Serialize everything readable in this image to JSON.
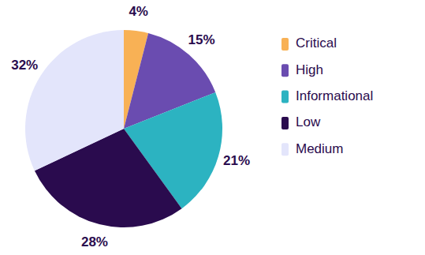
{
  "chart_data": {
    "type": "pie",
    "categories": [
      "Critical",
      "High",
      "Informational",
      "Low",
      "Medium"
    ],
    "values": [
      4,
      15,
      21,
      28,
      32
    ],
    "value_labels": [
      "4%",
      "15%",
      "21%",
      "28%",
      "32%"
    ],
    "colors": [
      "#f8b155",
      "#6a4cb0",
      "#2cb3c1",
      "#2a0b4e",
      "#e3e5fb"
    ],
    "data_labels": true,
    "legend": "right"
  }
}
